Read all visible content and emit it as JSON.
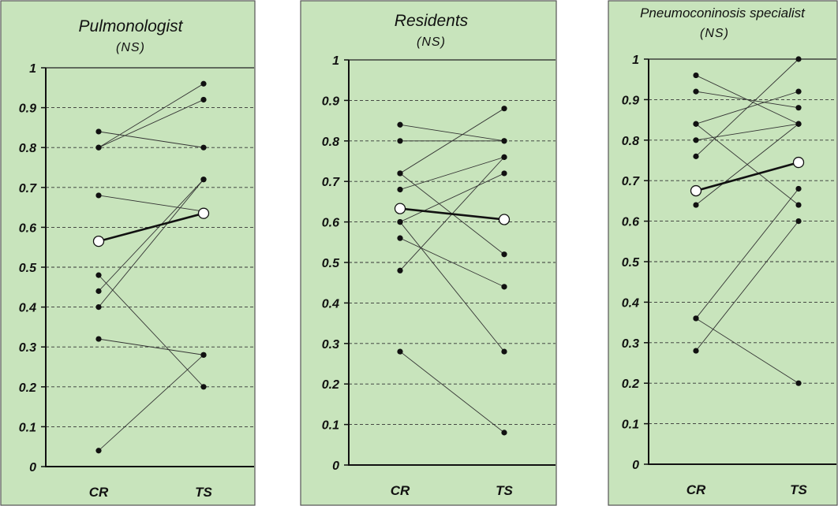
{
  "chart_data": [
    {
      "type": "line",
      "title": "Pulmonologist",
      "subtitle": "(NS)",
      "categories": [
        "CR",
        "TS"
      ],
      "ylim": [
        0,
        1
      ],
      "yticks": [
        "0",
        "0.1",
        "0.2",
        "0.3",
        "0.4",
        "0.5",
        "0.6",
        "0.7",
        "0.8",
        "0.9",
        "1"
      ],
      "grid": true,
      "background": "#c8e4bc",
      "series": [
        {
          "values": [
            0.84,
            0.8
          ]
        },
        {
          "values": [
            0.8,
            0.96
          ]
        },
        {
          "values": [
            0.8,
            0.92
          ]
        },
        {
          "values": [
            0.68,
            0.64
          ]
        },
        {
          "values": [
            0.48,
            0.2
          ]
        },
        {
          "values": [
            0.44,
            0.72
          ]
        },
        {
          "values": [
            0.4,
            0.72
          ]
        },
        {
          "values": [
            0.32,
            0.28
          ]
        },
        {
          "values": [
            0.04,
            0.28
          ]
        }
      ],
      "mean": {
        "values": [
          0.565,
          0.635
        ]
      }
    },
    {
      "type": "line",
      "title": "Residents",
      "subtitle": "(NS)",
      "categories": [
        "CR",
        "TS"
      ],
      "ylim": [
        0,
        1
      ],
      "yticks": [
        "0",
        "0.1",
        "0.2",
        "0.3",
        "0.4",
        "0.5",
        "0.6",
        "0.7",
        "0.8",
        "0.9",
        "1"
      ],
      "grid": true,
      "background": "#c8e4bc",
      "series": [
        {
          "values": [
            0.84,
            0.8
          ]
        },
        {
          "values": [
            0.8,
            0.8
          ]
        },
        {
          "values": [
            0.72,
            0.88
          ]
        },
        {
          "values": [
            0.72,
            0.52
          ]
        },
        {
          "values": [
            0.68,
            0.76
          ]
        },
        {
          "values": [
            0.6,
            0.72
          ]
        },
        {
          "values": [
            0.6,
            0.28
          ]
        },
        {
          "values": [
            0.56,
            0.44
          ]
        },
        {
          "values": [
            0.48,
            0.76
          ]
        },
        {
          "values": [
            0.28,
            0.08
          ]
        }
      ],
      "mean": {
        "values": [
          0.633,
          0.606
        ]
      }
    },
    {
      "type": "line",
      "title": "Pneumoconinosis specialist",
      "subtitle": "(NS)",
      "categories": [
        "CR",
        "TS"
      ],
      "ylim": [
        0,
        1
      ],
      "yticks": [
        "0",
        "0.1",
        "0.2",
        "0.3",
        "0.4",
        "0.5",
        "0.6",
        "0.7",
        "0.8",
        "0.9",
        "1"
      ],
      "grid": true,
      "background": "#c8e4bc",
      "series": [
        {
          "values": [
            0.96,
            0.84
          ]
        },
        {
          "values": [
            0.92,
            0.88
          ]
        },
        {
          "values": [
            0.84,
            0.92
          ]
        },
        {
          "values": [
            0.84,
            0.64
          ]
        },
        {
          "values": [
            0.8,
            0.84
          ]
        },
        {
          "values": [
            0.76,
            1.0
          ]
        },
        {
          "values": [
            0.64,
            0.84
          ]
        },
        {
          "values": [
            0.36,
            0.68
          ]
        },
        {
          "values": [
            0.36,
            0.2
          ]
        },
        {
          "values": [
            0.28,
            0.6
          ]
        }
      ],
      "mean": {
        "values": [
          0.675,
          0.745
        ]
      }
    }
  ]
}
